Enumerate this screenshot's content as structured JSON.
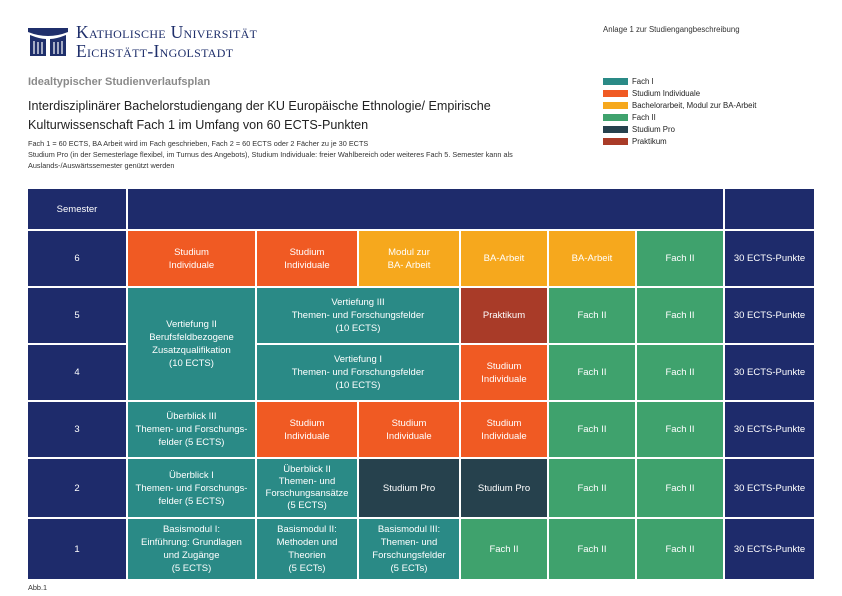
{
  "header": {
    "uni_line1": "Katholische Universität",
    "uni_line2": "Eichstätt-Ingolstadt",
    "anlage": "Anlage 1 zur Studiengangbeschreibung"
  },
  "doc": {
    "subtitle": "Idealtypischer Studienverlaufsplan",
    "title": "Interdisziplinärer Bachelorstudiengang der KU Europäische Ethnologie/ Empirische Kulturwissenschaft Fach 1 im Umfang von 60 ECTS-Punkten",
    "note1": "Fach 1 = 60 ECTS, BA Arbeit wird im Fach geschrieben, Fach 2 = 60 ECTS oder 2 Fächer zu je 30 ECTS",
    "note2": "Studium Pro (in der Semesterlage flexibel, im Turnus des Angebots), Studium Individuale: freier Wahlbereich oder weiteres Fach 5. Semester kann als Auslands-/Auswärtssemester genützt werden",
    "abb": "Abb.1"
  },
  "legend": [
    {
      "label": "Fach I",
      "color": "#2a8a86"
    },
    {
      "label": "Studium Individuale",
      "color": "#f05a23"
    },
    {
      "label": "Bachelorarbeit, Modul zur BA-Arbeit",
      "color": "#f6a81d"
    },
    {
      "label": "Fach II",
      "color": "#3fa26d"
    },
    {
      "label": "Studium Pro",
      "color": "#26414d"
    },
    {
      "label": "Praktikum",
      "color": "#a93b28"
    }
  ],
  "table": {
    "header_label": "Semester",
    "semesters": [
      "6",
      "5",
      "4",
      "3",
      "2",
      "1"
    ],
    "ects": [
      "30 ECTS-Punkte",
      "30 ECTS-Punkte",
      "30 ECTS-Punkte",
      "30 ECTS-Punkte",
      "30 ECTS-Punkte",
      "30 ECTS-Punkte"
    ],
    "cells": {
      "s6_c1": "Studium\nIndividuale",
      "s6_c2": "Studium\nIndividuale",
      "s6_c3": "Modul zur\nBA- Arbeit",
      "s6_c4": "BA-Arbeit",
      "s6_c5": "BA-Arbeit",
      "s6_c6": "Fach II",
      "s54_c1": "Vertiefung II\nBerufsfeldbezogene\nZusatzqualifikation\n(10 ECTS)",
      "s5_c23": "Vertiefung III\nThemen- und Forschungsfelder\n(10 ECTS)",
      "s5_c4": "Praktikum",
      "s5_c5": "Fach II",
      "s5_c6": "Fach II",
      "s4_c23": "Vertiefung I\nThemen- und Forschungsfelder\n(10 ECTS)",
      "s4_c4": "Studium\nIndividuale",
      "s4_c5": "Fach II",
      "s4_c6": "Fach II",
      "s3_c1": "Überblick III\nThemen- und Forschungs-\nfelder (5 ECTS)",
      "s3_c2": "Studium\nIndividuale",
      "s3_c3": "Studium\nIndividuale",
      "s3_c4": "Studium\nIndividuale",
      "s3_c5": "Fach II",
      "s3_c6": "Fach II",
      "s2_c1": "Überblick I\nThemen- und Forschungs-\nfelder (5 ECTS)",
      "s2_c2": "Überblick II\nThemen- und\nForschungsansätze\n(5 ECTS)",
      "s2_c3": "Studium Pro",
      "s2_c4": "Studium Pro",
      "s2_c5": "Fach II",
      "s2_c6": "Fach II",
      "s1_c1": "Basismodul I:\nEinführung: Grundlagen\nund Zugänge\n(5 ECTS)",
      "s1_c2": "Basismodul II:\nMethoden und\nTheorien\n(5 ECTs)",
      "s1_c3": "Basismodul III:\nThemen- und\nForschungsfelder\n(5 ECTs)",
      "s1_c4": "Fach II",
      "s1_c5": "Fach II",
      "s1_c6": "Fach II"
    }
  }
}
